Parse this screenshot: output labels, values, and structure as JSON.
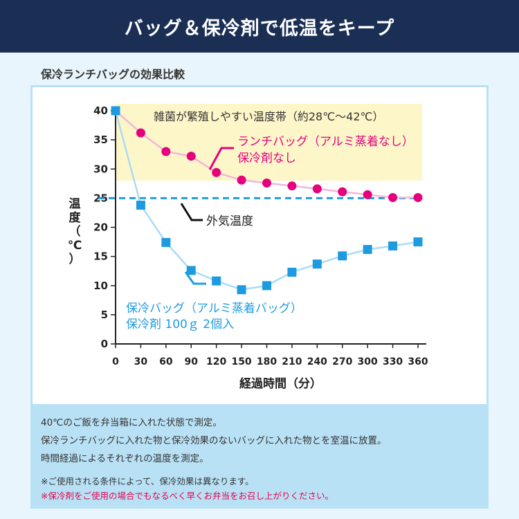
{
  "header": {
    "title": "バッグ＆保冷剤で低温をキープ"
  },
  "subtitle": "保冷ランチバッグの効果比較",
  "chart_data": {
    "type": "line",
    "xlabel": "経過時間（分）",
    "ylabel": "温度（℃）",
    "x": [
      0,
      30,
      60,
      90,
      120,
      150,
      180,
      210,
      240,
      270,
      300,
      330,
      360
    ],
    "x_ticks": [
      "0",
      "30",
      "60",
      "90",
      "120",
      "150",
      "180",
      "210",
      "240",
      "270",
      "300",
      "330",
      "360"
    ],
    "y_ticks": [
      "0",
      "5",
      "10",
      "15",
      "20",
      "25",
      "30",
      "35",
      "40"
    ],
    "xlim": [
      0,
      360
    ],
    "ylim": [
      0,
      40
    ],
    "grid": false,
    "danger_zone": {
      "label": "雑菌が繁殖しやすい温度帯（約28℃〜42℃）",
      "from": 28,
      "to": 42,
      "color": "#fdf6c9"
    },
    "reference_line": {
      "label": "外気温度",
      "value": 25,
      "color": "#1e9be0"
    },
    "series": [
      {
        "name_lines": [
          "ランチバッグ（アルミ蒸着なし）",
          "保冷剤なし"
        ],
        "marker": "circle",
        "color": "#e5007e",
        "line_color": "#f1b7d6",
        "values": [
          40,
          36.2,
          33.0,
          32.2,
          29.4,
          28.1,
          27.6,
          27.1,
          26.6,
          26.1,
          25.6,
          25.1,
          25.1
        ]
      },
      {
        "name_lines": [
          "保冷バッグ（アルミ蒸着バッグ）",
          "保冷剤 100ｇ 2個入"
        ],
        "marker": "square",
        "color": "#1e9be0",
        "line_color": "#a9dcf3",
        "values": [
          40,
          23.8,
          17.4,
          12.6,
          10.8,
          9.3,
          10.0,
          12.3,
          13.7,
          15.1,
          16.2,
          16.8,
          17.5
        ]
      }
    ]
  },
  "notes": {
    "line1": "40℃のご飯を弁当箱に入れた状態で測定。",
    "line2": "保冷ランチバッグに入れた物と保冷効果のないバッグに入れた物とを室温に放置。",
    "line3": "時間経過によるそれぞれの温度を測定。",
    "caution1": "※ご使用される条件によって、保冷効果は異なります。",
    "caution2": "※保冷剤をご使用の場合でもなるべく早くお弁当をお召し上がりください。"
  }
}
